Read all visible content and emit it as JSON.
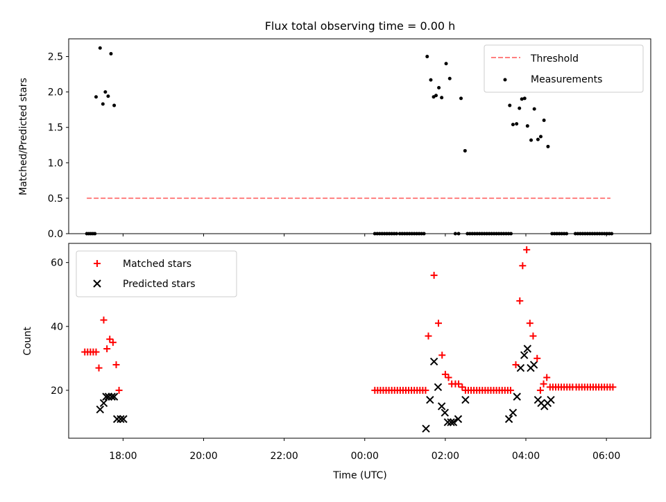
{
  "chart_data": [
    {
      "type": "scatter",
      "title": "Flux total observing time = 0.00 h",
      "xlabel": "",
      "ylabel": "Matched/Predicted stars",
      "ylim": [
        0,
        2.75
      ],
      "yticks": [
        "0.0",
        "0.5",
        "1.0",
        "1.5",
        "2.0",
        "2.5"
      ],
      "legend": "top-right",
      "threshold": {
        "name": "Threshold",
        "value": 0.5,
        "x_range": [
          -6.9,
          6.1
        ],
        "color": "#ff7f7f"
      },
      "series": [
        {
          "name": "Measurements",
          "color": "#000000",
          "points": [
            [
              -6.9,
              0
            ],
            [
              -6.85,
              0
            ],
            [
              -6.8,
              0
            ],
            [
              -6.75,
              0
            ],
            [
              -6.7,
              0
            ],
            [
              -6.67,
              1.93
            ],
            [
              -6.57,
              2.62
            ],
            [
              -6.5,
              1.83
            ],
            [
              -6.44,
              2.0
            ],
            [
              -6.37,
              1.94
            ],
            [
              -6.3,
              2.54
            ],
            [
              -6.22,
              1.81
            ],
            [
              0.25,
              0
            ],
            [
              0.31,
              0
            ],
            [
              0.37,
              0
            ],
            [
              0.43,
              0
            ],
            [
              0.49,
              0
            ],
            [
              0.55,
              0
            ],
            [
              0.61,
              0
            ],
            [
              0.67,
              0
            ],
            [
              0.73,
              0
            ],
            [
              0.79,
              0
            ],
            [
              0.87,
              0
            ],
            [
              0.93,
              0
            ],
            [
              0.99,
              0
            ],
            [
              1.05,
              0
            ],
            [
              1.11,
              0
            ],
            [
              1.17,
              0
            ],
            [
              1.23,
              0
            ],
            [
              1.29,
              0
            ],
            [
              1.35,
              0
            ],
            [
              1.41,
              0
            ],
            [
              1.47,
              0
            ],
            [
              1.55,
              2.5
            ],
            [
              1.64,
              2.17
            ],
            [
              1.71,
              1.93
            ],
            [
              1.77,
              1.95
            ],
            [
              1.84,
              2.06
            ],
            [
              1.91,
              1.92
            ],
            [
              2.02,
              2.4
            ],
            [
              2.11,
              2.19
            ],
            [
              2.25,
              0
            ],
            [
              2.33,
              0
            ],
            [
              2.39,
              1.91
            ],
            [
              2.49,
              1.17
            ],
            [
              2.55,
              0
            ],
            [
              2.61,
              0
            ],
            [
              2.67,
              0
            ],
            [
              2.73,
              0
            ],
            [
              2.79,
              0
            ],
            [
              2.85,
              0
            ],
            [
              2.91,
              0
            ],
            [
              2.97,
              0
            ],
            [
              3.03,
              0
            ],
            [
              3.09,
              0
            ],
            [
              3.15,
              0
            ],
            [
              3.21,
              0
            ],
            [
              3.27,
              0
            ],
            [
              3.33,
              0
            ],
            [
              3.39,
              0
            ],
            [
              3.45,
              0
            ],
            [
              3.51,
              0
            ],
            [
              3.57,
              0
            ],
            [
              3.63,
              0
            ],
            [
              3.6,
              1.81
            ],
            [
              3.68,
              1.54
            ],
            [
              3.77,
              1.55
            ],
            [
              3.84,
              1.77
            ],
            [
              3.9,
              1.9
            ],
            [
              3.97,
              1.91
            ],
            [
              4.04,
              1.52
            ],
            [
              4.13,
              1.32
            ],
            [
              4.21,
              1.76
            ],
            [
              4.3,
              1.33
            ],
            [
              4.37,
              1.37
            ],
            [
              4.45,
              1.6
            ],
            [
              4.55,
              1.23
            ],
            [
              4.65,
              0
            ],
            [
              4.71,
              0
            ],
            [
              4.77,
              0
            ],
            [
              4.83,
              0
            ],
            [
              4.89,
              0
            ],
            [
              4.95,
              0
            ],
            [
              5.01,
              0
            ],
            [
              5.23,
              0
            ],
            [
              5.29,
              0
            ],
            [
              5.35,
              0
            ],
            [
              5.41,
              0
            ],
            [
              5.47,
              0
            ],
            [
              5.53,
              0
            ],
            [
              5.59,
              0
            ],
            [
              5.65,
              0
            ],
            [
              5.71,
              0
            ],
            [
              5.77,
              0
            ],
            [
              5.83,
              0
            ],
            [
              5.89,
              0
            ],
            [
              5.95,
              0
            ],
            [
              6.01,
              0
            ],
            [
              6.07,
              0
            ],
            [
              6.13,
              0
            ]
          ]
        }
      ]
    },
    {
      "type": "scatter",
      "title": "",
      "xlabel": "Time (UTC)",
      "ylabel": "Count",
      "ylim": [
        5,
        66
      ],
      "yticks": [
        "20",
        "40",
        "60"
      ],
      "xticks": [
        "18:00",
        "20:00",
        "22:00",
        "00:00",
        "02:00",
        "04:00",
        "06:00"
      ],
      "legend": "top-left",
      "series": [
        {
          "name": "Matched stars",
          "color": "#ff0000",
          "marker": "plus",
          "points": [
            [
              -6.95,
              32
            ],
            [
              -6.88,
              32
            ],
            [
              -6.81,
              32
            ],
            [
              -6.74,
              32
            ],
            [
              -6.67,
              32
            ],
            [
              -6.6,
              27
            ],
            [
              -6.48,
              42
            ],
            [
              -6.4,
              33
            ],
            [
              -6.33,
              36
            ],
            [
              -6.25,
              35
            ],
            [
              -6.17,
              28
            ],
            [
              -6.1,
              20
            ],
            [
              0.25,
              20
            ],
            [
              0.32,
              20
            ],
            [
              0.39,
              20
            ],
            [
              0.46,
              20
            ],
            [
              0.53,
              20
            ],
            [
              0.6,
              20
            ],
            [
              0.67,
              20
            ],
            [
              0.74,
              20
            ],
            [
              0.81,
              20
            ],
            [
              0.88,
              20
            ],
            [
              0.95,
              20
            ],
            [
              1.02,
              20
            ],
            [
              1.09,
              20
            ],
            [
              1.16,
              20
            ],
            [
              1.23,
              20
            ],
            [
              1.3,
              20
            ],
            [
              1.37,
              20
            ],
            [
              1.44,
              20
            ],
            [
              1.51,
              20
            ],
            [
              1.58,
              37
            ],
            [
              1.72,
              56
            ],
            [
              1.83,
              41
            ],
            [
              1.92,
              31
            ],
            [
              2.0,
              25
            ],
            [
              2.08,
              24
            ],
            [
              2.16,
              22
            ],
            [
              2.25,
              22
            ],
            [
              2.33,
              22
            ],
            [
              2.42,
              21
            ],
            [
              2.5,
              20
            ],
            [
              2.57,
              20
            ],
            [
              2.64,
              20
            ],
            [
              2.71,
              20
            ],
            [
              2.78,
              20
            ],
            [
              2.85,
              20
            ],
            [
              2.92,
              20
            ],
            [
              2.99,
              20
            ],
            [
              3.06,
              20
            ],
            [
              3.13,
              20
            ],
            [
              3.2,
              20
            ],
            [
              3.27,
              20
            ],
            [
              3.34,
              20
            ],
            [
              3.41,
              20
            ],
            [
              3.48,
              20
            ],
            [
              3.55,
              20
            ],
            [
              3.62,
              20
            ],
            [
              3.75,
              28
            ],
            [
              3.85,
              48
            ],
            [
              3.92,
              59
            ],
            [
              4.02,
              64
            ],
            [
              4.1,
              41
            ],
            [
              4.18,
              37
            ],
            [
              4.28,
              30
            ],
            [
              4.36,
              20
            ],
            [
              4.44,
              22
            ],
            [
              4.52,
              24
            ],
            [
              4.6,
              21
            ],
            [
              4.67,
              21
            ],
            [
              4.74,
              21
            ],
            [
              4.81,
              21
            ],
            [
              4.88,
              21
            ],
            [
              4.95,
              21
            ],
            [
              5.02,
              21
            ],
            [
              5.09,
              21
            ],
            [
              5.16,
              21
            ],
            [
              5.25,
              21
            ],
            [
              5.32,
              21
            ],
            [
              5.39,
              21
            ],
            [
              5.46,
              21
            ],
            [
              5.53,
              21
            ],
            [
              5.6,
              21
            ],
            [
              5.67,
              21
            ],
            [
              5.74,
              21
            ],
            [
              5.81,
              21
            ],
            [
              5.88,
              21
            ],
            [
              5.95,
              21
            ],
            [
              6.02,
              21
            ],
            [
              6.09,
              21
            ],
            [
              6.16,
              21
            ]
          ]
        },
        {
          "name": "Predicted stars",
          "color": "#000000",
          "marker": "x",
          "points": [
            [
              -6.57,
              14
            ],
            [
              -6.48,
              16
            ],
            [
              -6.42,
              18
            ],
            [
              -6.36,
              18
            ],
            [
              -6.28,
              18
            ],
            [
              -6.22,
              18
            ],
            [
              -6.15,
              11
            ],
            [
              -6.06,
              11
            ],
            [
              -5.99,
              11
            ],
            [
              1.52,
              8
            ],
            [
              1.62,
              17
            ],
            [
              1.72,
              29
            ],
            [
              1.82,
              21
            ],
            [
              1.91,
              15
            ],
            [
              1.99,
              13
            ],
            [
              2.06,
              10
            ],
            [
              2.14,
              10
            ],
            [
              2.2,
              10
            ],
            [
              2.32,
              11
            ],
            [
              2.5,
              17
            ],
            [
              3.58,
              11
            ],
            [
              3.68,
              13
            ],
            [
              3.78,
              18
            ],
            [
              3.87,
              27
            ],
            [
              3.96,
              31
            ],
            [
              4.04,
              33
            ],
            [
              4.12,
              27
            ],
            [
              4.2,
              28
            ],
            [
              4.3,
              17
            ],
            [
              4.38,
              16
            ],
            [
              4.46,
              15
            ],
            [
              4.54,
              16
            ],
            [
              4.62,
              17
            ]
          ]
        }
      ]
    }
  ]
}
